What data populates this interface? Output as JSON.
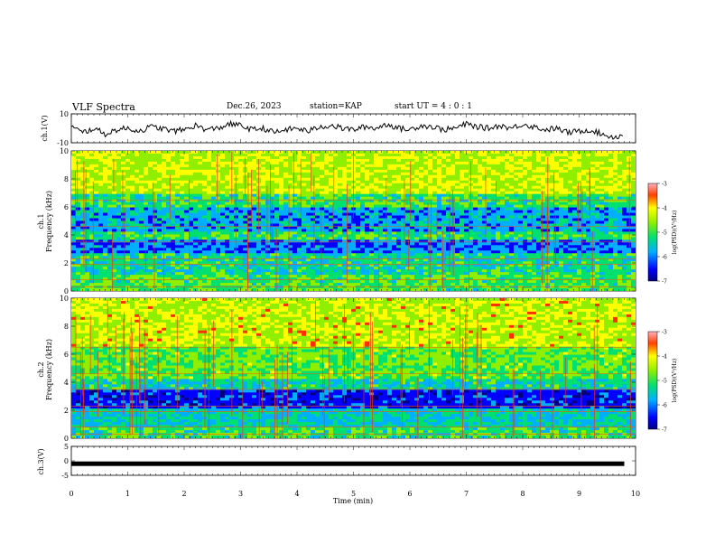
{
  "header": {
    "title": "VLF Spectra",
    "date": "Dec.26, 2023",
    "station": "station=KAP",
    "start": "start UT =  4 : 0  : 1"
  },
  "chart_data": [
    {
      "type": "line",
      "ylabel": "ch.1(V)",
      "ylim": [
        -10,
        10
      ],
      "yticks": [
        "10",
        "-10"
      ],
      "xlim": [
        0,
        10
      ],
      "x": [
        0,
        0.2,
        0.4,
        0.6,
        0.8,
        1.0,
        1.2,
        1.4,
        1.6,
        1.8,
        2.0,
        2.2,
        2.4,
        2.6,
        2.8,
        3.0,
        3.2,
        3.4,
        3.6,
        3.8,
        4.0,
        4.2,
        4.4,
        4.6,
        4.8,
        5.0,
        5.2,
        5.4,
        5.6,
        5.8,
        6.0,
        6.2,
        6.4,
        6.6,
        6.8,
        7.0,
        7.2,
        7.4,
        7.6,
        7.8,
        8.0,
        8.2,
        8.4,
        8.6,
        8.8,
        9.0,
        9.2,
        9.4,
        9.6,
        9.8
      ],
      "y": [
        1,
        -3,
        0,
        -4,
        -1,
        0,
        -2,
        1,
        0,
        -2,
        -1,
        2,
        -1,
        0,
        3,
        2,
        -1,
        0,
        -3,
        -1,
        0,
        -2,
        1,
        2,
        0,
        -1,
        1,
        0,
        3,
        0,
        -1,
        2,
        1,
        -1,
        0,
        3,
        1,
        0,
        2,
        0,
        3,
        1,
        -1,
        0,
        -3,
        -2,
        -1,
        -4,
        -6,
        -5
      ]
    },
    {
      "type": "heatmap",
      "ylabel": "ch.1\nFrequency (kHz)",
      "xlim": [
        0,
        10
      ],
      "ylim": [
        0,
        10
      ],
      "yticks": [
        "0",
        "2",
        "4",
        "6",
        "8",
        "10"
      ],
      "colorbar": {
        "label": "log(PSD)(V²/Hz)",
        "ticks": [
          "-3",
          "-4",
          "-5",
          "-6",
          "-7"
        ],
        "range": [
          -7,
          -3
        ]
      }
    },
    {
      "type": "heatmap",
      "ylabel": "ch.2\nFrequency (kHz)",
      "xlim": [
        0,
        10
      ],
      "ylim": [
        0,
        10
      ],
      "yticks": [
        "0",
        "2",
        "4",
        "6",
        "8",
        "10"
      ],
      "colorbar": {
        "label": "log(PSD)(V²/Hz)",
        "ticks": [
          "-3",
          "-4",
          "-5",
          "-6",
          "-7"
        ],
        "range": [
          -7,
          -3
        ]
      }
    },
    {
      "type": "line",
      "ylabel": "ch.3(V)",
      "ylim": [
        -5,
        5
      ],
      "yticks": [
        "5",
        "0",
        "-5"
      ],
      "xlim": [
        0,
        10
      ],
      "x": [
        0,
        9.8
      ],
      "y": [
        -1,
        -1
      ]
    }
  ],
  "xaxis": {
    "label": "Time (min)",
    "ticks": [
      "0",
      "1",
      "2",
      "3",
      "4",
      "5",
      "6",
      "7",
      "8",
      "9",
      "10"
    ]
  }
}
